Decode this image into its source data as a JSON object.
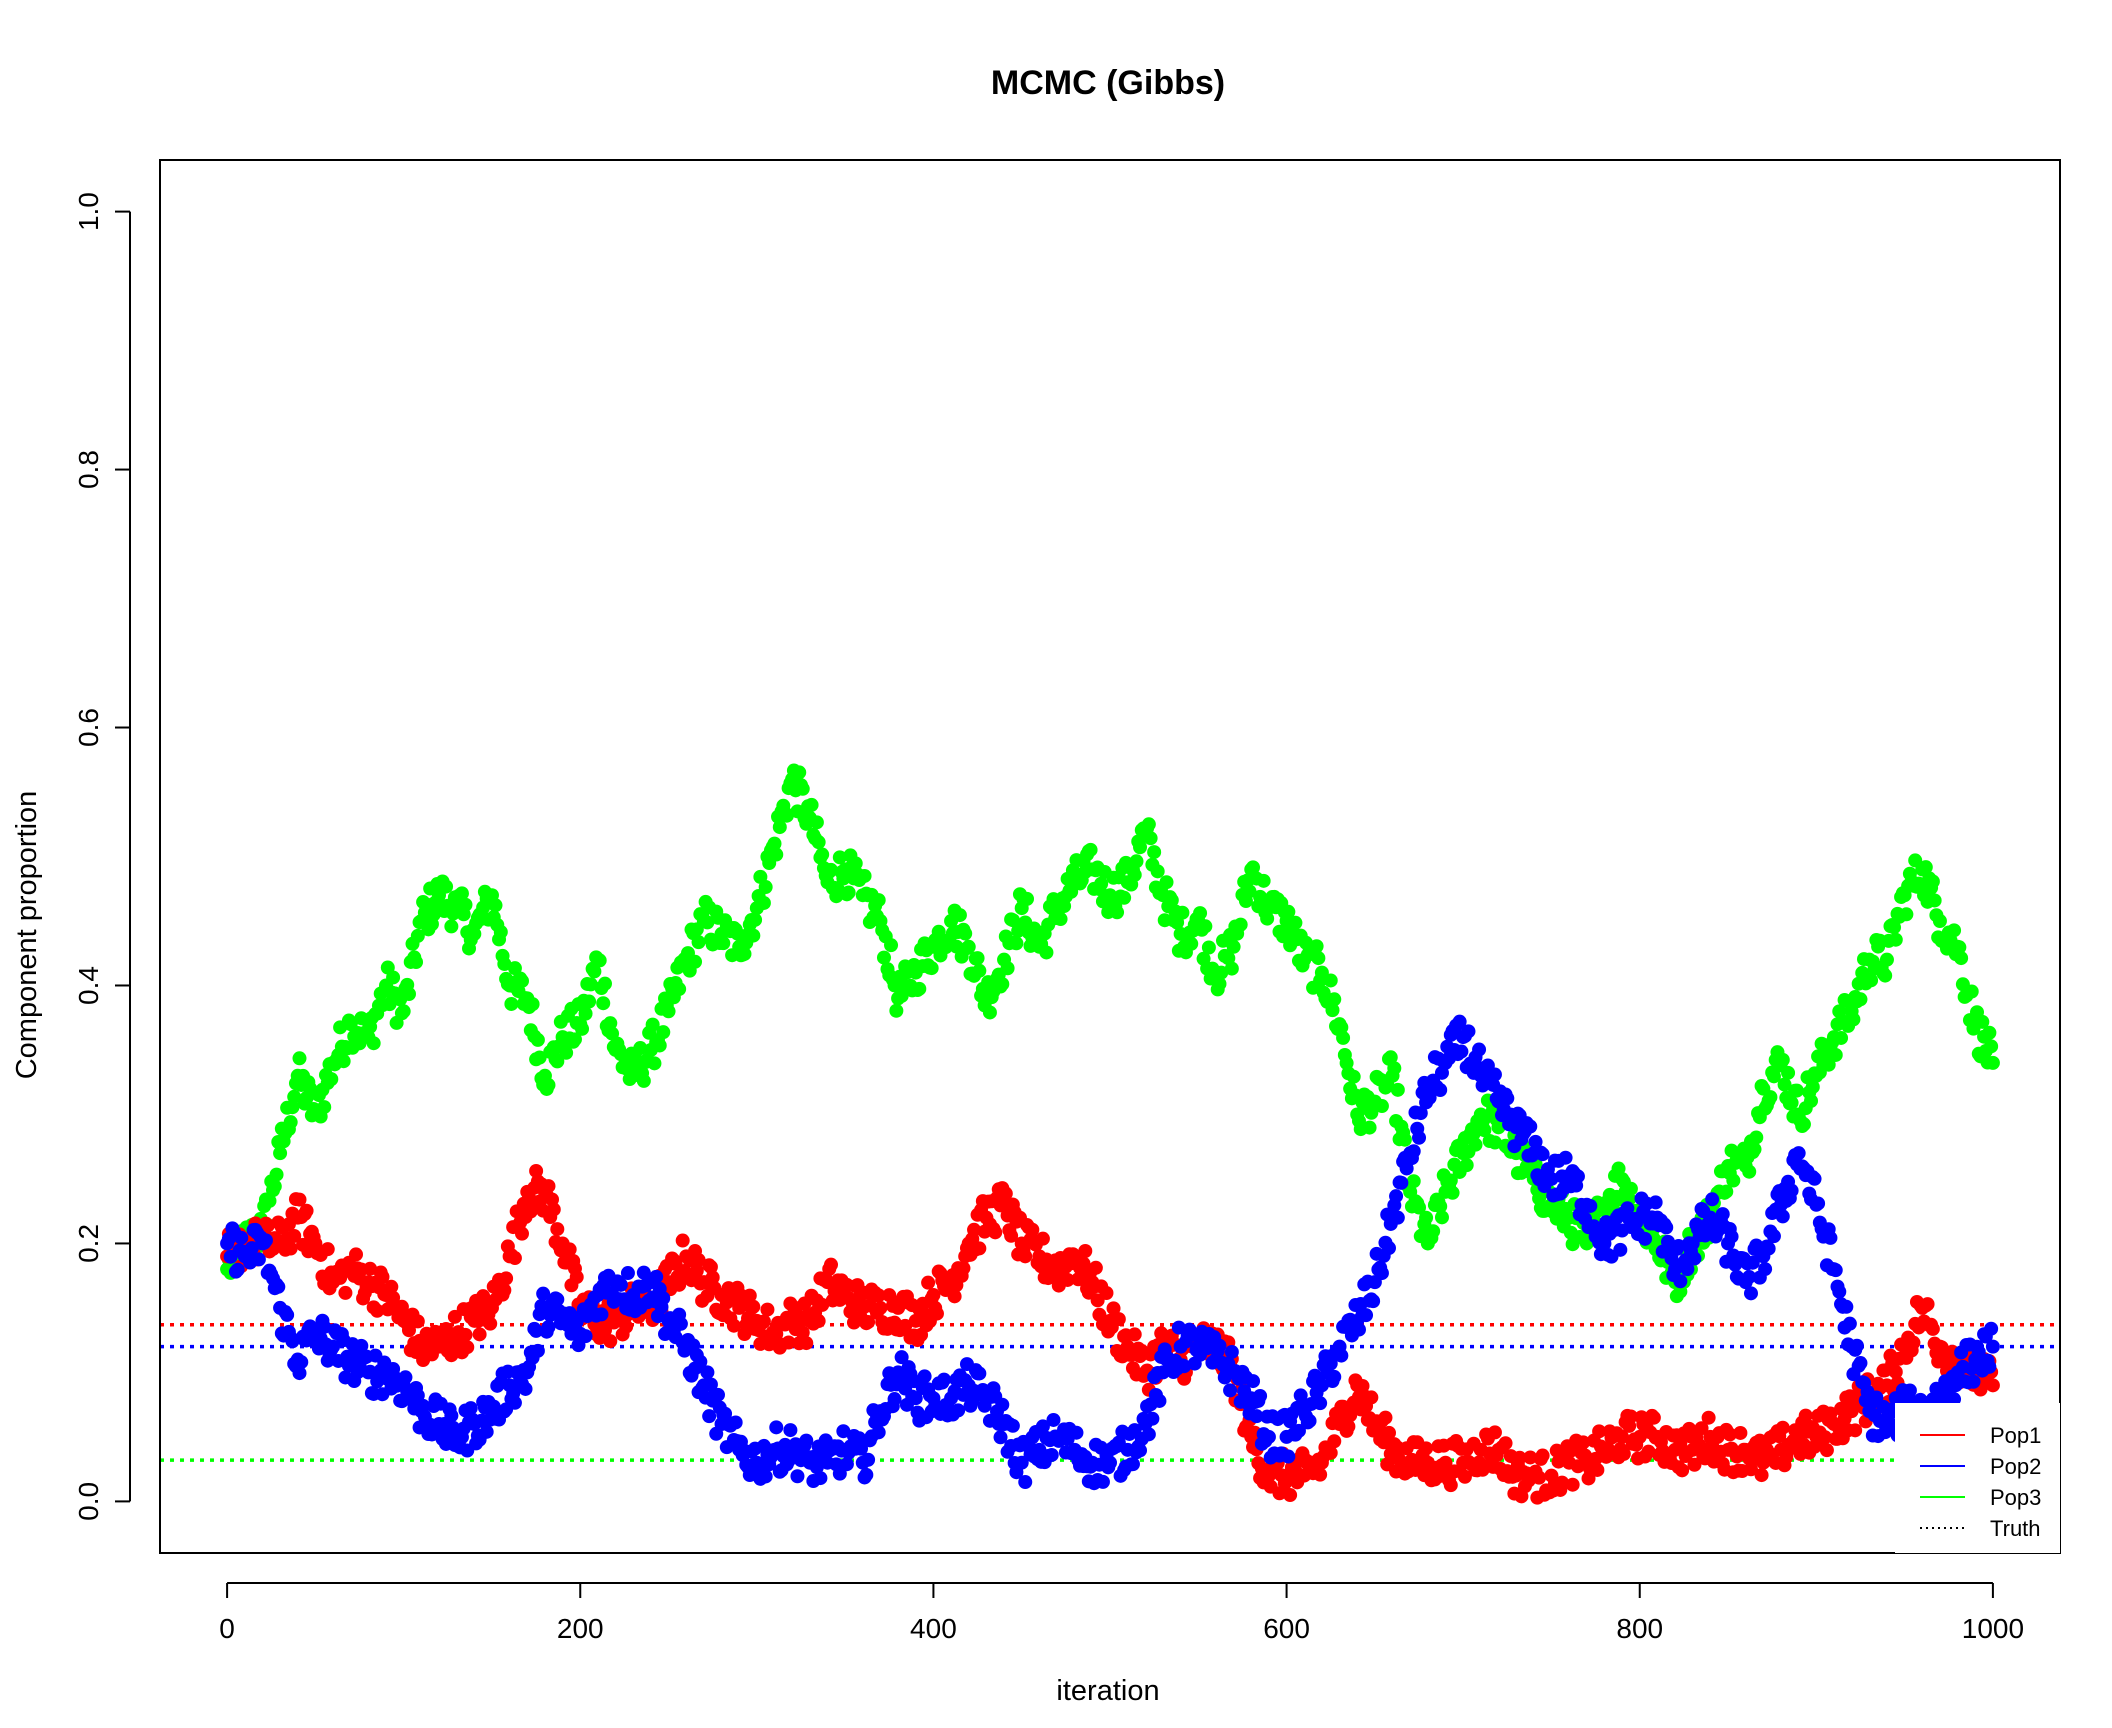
{
  "chart_data": {
    "type": "scatter",
    "title": "MCMC (Gibbs)",
    "xlabel": "iteration",
    "ylabel": "Component proportion",
    "xlim": [
      -38,
      1038
    ],
    "ylim": [
      -0.04,
      1.04
    ],
    "xticks": [
      0,
      200,
      400,
      600,
      800,
      1000
    ],
    "yticks": [
      0.0,
      0.2,
      0.4,
      0.6,
      0.8,
      1.0
    ],
    "xtick_labels": [
      "0",
      "200",
      "400",
      "600",
      "800",
      "1000"
    ],
    "ytick_labels": [
      "0.0",
      "0.2",
      "0.4",
      "0.6",
      "0.8",
      "1.0"
    ],
    "grid": false,
    "legend_position": "bottom-right",
    "legend": [
      {
        "label": "Pop1",
        "color": "#ff0000",
        "style": "solid"
      },
      {
        "label": "Pop2",
        "color": "#0000ff",
        "style": "solid"
      },
      {
        "label": "Pop3",
        "color": "#00ff00",
        "style": "solid"
      },
      {
        "label": "Truth",
        "color": "#000000",
        "style": "dotted"
      }
    ],
    "truth_lines": [
      {
        "series": "Pop1",
        "y": 0.137,
        "color": "#ff0000"
      },
      {
        "series": "Pop2",
        "y": 0.12,
        "color": "#0000ff"
      },
      {
        "series": "Pop3",
        "y": 0.032,
        "color": "#00ff00"
      }
    ],
    "series": [
      {
        "name": "Pop3",
        "color": "#00ff00",
        "x": [
          0,
          10,
          20,
          30,
          40,
          50,
          60,
          70,
          80,
          90,
          100,
          110,
          120,
          130,
          140,
          150,
          160,
          170,
          180,
          190,
          200,
          210,
          220,
          230,
          240,
          250,
          260,
          270,
          280,
          290,
          300,
          310,
          320,
          330,
          340,
          350,
          360,
          370,
          380,
          390,
          400,
          410,
          420,
          430,
          440,
          450,
          460,
          470,
          480,
          490,
          500,
          510,
          520,
          530,
          540,
          550,
          560,
          570,
          580,
          590,
          600,
          610,
          620,
          630,
          640,
          650,
          660,
          670,
          680,
          690,
          700,
          710,
          720,
          730,
          740,
          750,
          760,
          770,
          780,
          790,
          800,
          810,
          820,
          830,
          840,
          850,
          860,
          870,
          880,
          890,
          900,
          910,
          920,
          930,
          940,
          950,
          960,
          970,
          980,
          990,
          1000
        ],
        "values": [
          0.18,
          0.2,
          0.21,
          0.27,
          0.33,
          0.3,
          0.34,
          0.37,
          0.36,
          0.4,
          0.38,
          0.45,
          0.47,
          0.46,
          0.44,
          0.47,
          0.4,
          0.39,
          0.33,
          0.36,
          0.37,
          0.42,
          0.35,
          0.33,
          0.35,
          0.38,
          0.42,
          0.45,
          0.44,
          0.43,
          0.46,
          0.51,
          0.56,
          0.53,
          0.48,
          0.49,
          0.47,
          0.45,
          0.39,
          0.41,
          0.43,
          0.45,
          0.43,
          0.39,
          0.42,
          0.46,
          0.43,
          0.46,
          0.48,
          0.49,
          0.47,
          0.48,
          0.52,
          0.47,
          0.44,
          0.45,
          0.41,
          0.43,
          0.49,
          0.46,
          0.45,
          0.42,
          0.41,
          0.37,
          0.3,
          0.31,
          0.33,
          0.24,
          0.2,
          0.24,
          0.27,
          0.3,
          0.29,
          0.27,
          0.25,
          0.23,
          0.22,
          0.2,
          0.23,
          0.25,
          0.22,
          0.2,
          0.17,
          0.2,
          0.22,
          0.26,
          0.26,
          0.32,
          0.34,
          0.3,
          0.33,
          0.36,
          0.38,
          0.42,
          0.42,
          0.47,
          0.49,
          0.45,
          0.43,
          0.37,
          0.34
        ]
      },
      {
        "name": "Pop1",
        "color": "#ff0000",
        "x": [
          0,
          10,
          20,
          30,
          40,
          50,
          60,
          70,
          80,
          90,
          100,
          110,
          120,
          130,
          140,
          150,
          160,
          170,
          180,
          190,
          200,
          210,
          220,
          230,
          240,
          250,
          260,
          270,
          280,
          290,
          300,
          310,
          320,
          330,
          340,
          350,
          360,
          370,
          380,
          390,
          400,
          410,
          420,
          430,
          440,
          450,
          460,
          470,
          480,
          490,
          500,
          510,
          520,
          530,
          540,
          550,
          560,
          570,
          580,
          590,
          600,
          610,
          620,
          630,
          640,
          650,
          660,
          670,
          680,
          690,
          700,
          710,
          720,
          730,
          740,
          750,
          760,
          770,
          780,
          790,
          800,
          810,
          820,
          830,
          840,
          850,
          860,
          870,
          880,
          890,
          900,
          910,
          920,
          930,
          940,
          950,
          960,
          970,
          980,
          990,
          1000
        ],
        "values": [
          0.19,
          0.2,
          0.2,
          0.2,
          0.22,
          0.2,
          0.17,
          0.18,
          0.17,
          0.16,
          0.14,
          0.12,
          0.12,
          0.13,
          0.14,
          0.15,
          0.19,
          0.24,
          0.24,
          0.2,
          0.15,
          0.14,
          0.14,
          0.15,
          0.15,
          0.17,
          0.19,
          0.17,
          0.16,
          0.15,
          0.14,
          0.13,
          0.14,
          0.14,
          0.17,
          0.16,
          0.15,
          0.15,
          0.15,
          0.14,
          0.16,
          0.17,
          0.2,
          0.22,
          0.23,
          0.2,
          0.19,
          0.18,
          0.19,
          0.17,
          0.14,
          0.12,
          0.1,
          0.12,
          0.11,
          0.12,
          0.12,
          0.1,
          0.05,
          0.02,
          0.02,
          0.02,
          0.03,
          0.06,
          0.09,
          0.06,
          0.04,
          0.03,
          0.03,
          0.03,
          0.03,
          0.04,
          0.04,
          0.02,
          0.02,
          0.02,
          0.03,
          0.03,
          0.04,
          0.05,
          0.05,
          0.05,
          0.04,
          0.04,
          0.05,
          0.04,
          0.04,
          0.03,
          0.04,
          0.05,
          0.05,
          0.06,
          0.07,
          0.08,
          0.09,
          0.12,
          0.15,
          0.12,
          0.11,
          0.1,
          0.09
        ]
      },
      {
        "name": "Pop2",
        "color": "#0000ff",
        "x": [
          0,
          10,
          20,
          30,
          40,
          50,
          60,
          70,
          80,
          90,
          100,
          110,
          120,
          130,
          140,
          150,
          160,
          170,
          180,
          190,
          200,
          210,
          220,
          230,
          240,
          250,
          260,
          270,
          280,
          290,
          300,
          310,
          320,
          330,
          340,
          350,
          360,
          370,
          380,
          390,
          400,
          410,
          420,
          430,
          440,
          450,
          460,
          470,
          480,
          490,
          500,
          510,
          520,
          530,
          540,
          550,
          560,
          570,
          580,
          590,
          600,
          610,
          620,
          630,
          640,
          650,
          660,
          670,
          680,
          690,
          700,
          710,
          720,
          730,
          740,
          750,
          760,
          770,
          780,
          790,
          800,
          810,
          820,
          830,
          840,
          850,
          860,
          870,
          880,
          890,
          900,
          910,
          920,
          930,
          940,
          950,
          960,
          970,
          980,
          990,
          1000
        ],
        "values": [
          0.2,
          0.19,
          0.2,
          0.15,
          0.11,
          0.13,
          0.12,
          0.11,
          0.1,
          0.1,
          0.09,
          0.07,
          0.06,
          0.05,
          0.06,
          0.07,
          0.09,
          0.1,
          0.15,
          0.14,
          0.13,
          0.16,
          0.17,
          0.16,
          0.17,
          0.14,
          0.12,
          0.09,
          0.06,
          0.04,
          0.03,
          0.04,
          0.04,
          0.03,
          0.03,
          0.04,
          0.03,
          0.07,
          0.1,
          0.08,
          0.08,
          0.08,
          0.09,
          0.08,
          0.06,
          0.03,
          0.04,
          0.05,
          0.04,
          0.03,
          0.03,
          0.04,
          0.06,
          0.1,
          0.12,
          0.12,
          0.11,
          0.1,
          0.08,
          0.05,
          0.05,
          0.07,
          0.09,
          0.12,
          0.14,
          0.17,
          0.22,
          0.27,
          0.32,
          0.34,
          0.36,
          0.33,
          0.31,
          0.29,
          0.27,
          0.25,
          0.25,
          0.23,
          0.2,
          0.21,
          0.22,
          0.22,
          0.18,
          0.2,
          0.22,
          0.2,
          0.17,
          0.19,
          0.23,
          0.27,
          0.23,
          0.18,
          0.12,
          0.07,
          0.06,
          0.07,
          0.07,
          0.08,
          0.1,
          0.11,
          0.12
        ]
      }
    ]
  }
}
